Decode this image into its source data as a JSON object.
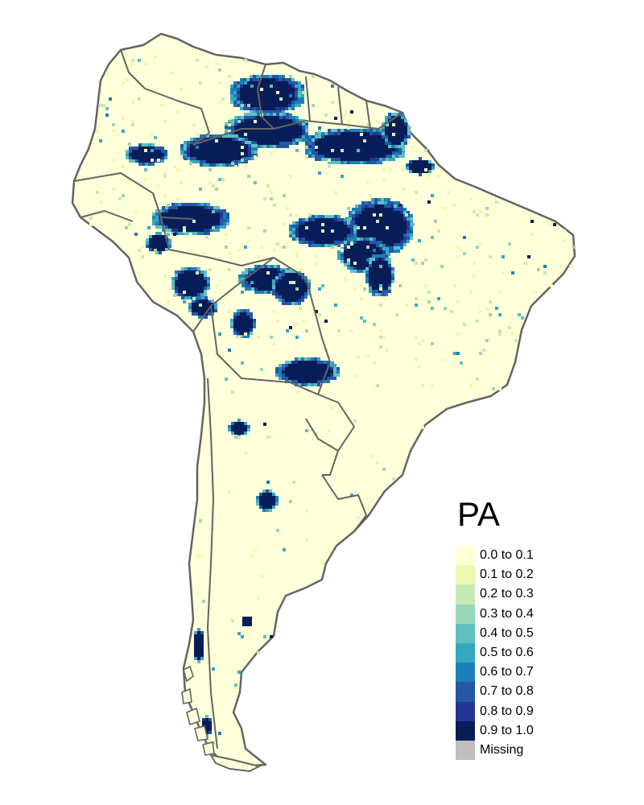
{
  "legend": {
    "title": "PA",
    "items": [
      {
        "label": "0.0 to 0.1",
        "color": "#FFFFD9"
      },
      {
        "label": "0.1 to 0.2",
        "color": "#EDF8B1"
      },
      {
        "label": "0.2 to 0.3",
        "color": "#C7E9B4"
      },
      {
        "label": "0.3 to 0.4",
        "color": "#98D6B9"
      },
      {
        "label": "0.4 to 0.5",
        "color": "#5EC1C0"
      },
      {
        "label": "0.5 to 0.6",
        "color": "#34A7C2"
      },
      {
        "label": "0.6 to 0.7",
        "color": "#1D7FB7"
      },
      {
        "label": "0.7 to 0.8",
        "color": "#2457A6"
      },
      {
        "label": "0.8 to 0.9",
        "color": "#233696"
      },
      {
        "label": "0.9 to 1.0",
        "color": "#081D58"
      },
      {
        "label": "Missing",
        "color": "#BEBEBE"
      }
    ]
  },
  "map": {
    "region": "South America",
    "background_class": "0.0 to 0.1",
    "border_color": "#646464"
  }
}
